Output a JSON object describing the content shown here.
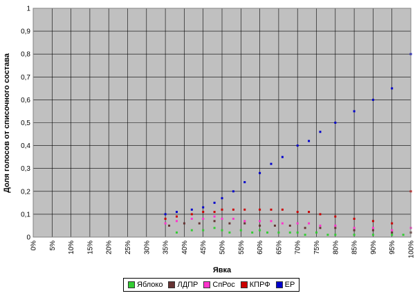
{
  "chart_data": {
    "type": "scatter",
    "xlabel": "Явка",
    "ylabel": "Доля голосов от списочного состава",
    "xlim": [
      0,
      100
    ],
    "ylim": [
      0,
      1
    ],
    "x_ticks": [
      "0%",
      "5%",
      "10%",
      "15%",
      "20%",
      "25%",
      "30%",
      "35%",
      "40%",
      "45%",
      "50%",
      "55%",
      "60%",
      "65%",
      "70%",
      "75%",
      "80%",
      "85%",
      "90%",
      "95%",
      "100%"
    ],
    "y_ticks": [
      "0",
      "0,1",
      "0,2",
      "0,3",
      "0,4",
      "0,5",
      "0,6",
      "0,7",
      "0,8",
      "0,9",
      "1"
    ],
    "grid": true,
    "legend_position": "bottom",
    "series": [
      {
        "name": "Яблоко",
        "color": "#33cc33",
        "x": [
          38,
          42,
          45,
          48,
          50,
          52,
          55,
          58,
          60,
          62,
          65,
          68,
          70,
          72,
          75,
          78,
          80,
          85,
          90,
          95,
          98,
          100
        ],
        "y": [
          0.02,
          0.03,
          0.03,
          0.04,
          0.03,
          0.02,
          0.03,
          0.02,
          0.03,
          0.02,
          0.02,
          0.02,
          0.02,
          0.01,
          0.02,
          0.01,
          0.01,
          0.01,
          0.01,
          0.01,
          0.01,
          0.02
        ]
      },
      {
        "name": "ЛДПР",
        "color": "#663333",
        "x": [
          36,
          40,
          44,
          48,
          52,
          56,
          60,
          64,
          68,
          72,
          76,
          80,
          85,
          90,
          95,
          100
        ],
        "y": [
          0.05,
          0.06,
          0.06,
          0.07,
          0.06,
          0.06,
          0.05,
          0.05,
          0.05,
          0.04,
          0.04,
          0.04,
          0.03,
          0.03,
          0.02,
          0.02
        ]
      },
      {
        "name": "СпРос",
        "color": "#ff33cc",
        "x": [
          35,
          38,
          42,
          45,
          48,
          50,
          53,
          56,
          60,
          63,
          66,
          70,
          73,
          76,
          80,
          85,
          90,
          95,
          100
        ],
        "y": [
          0.06,
          0.07,
          0.08,
          0.08,
          0.09,
          0.08,
          0.08,
          0.07,
          0.07,
          0.07,
          0.06,
          0.06,
          0.06,
          0.05,
          0.05,
          0.04,
          0.04,
          0.03,
          0.04
        ]
      },
      {
        "name": "КПРФ",
        "color": "#cc0000",
        "x": [
          35,
          38,
          42,
          45,
          48,
          50,
          53,
          56,
          60,
          63,
          66,
          70,
          73,
          76,
          80,
          85,
          90,
          95,
          100
        ],
        "y": [
          0.08,
          0.09,
          0.1,
          0.11,
          0.11,
          0.12,
          0.12,
          0.12,
          0.12,
          0.12,
          0.12,
          0.11,
          0.11,
          0.1,
          0.09,
          0.08,
          0.07,
          0.06,
          0.2
        ]
      },
      {
        "name": "ЕР",
        "color": "#0000cc",
        "x": [
          35,
          38,
          42,
          45,
          48,
          50,
          53,
          56,
          60,
          63,
          66,
          70,
          73,
          76,
          80,
          85,
          90,
          95,
          100
        ],
        "y": [
          0.1,
          0.11,
          0.12,
          0.13,
          0.15,
          0.17,
          0.2,
          0.24,
          0.28,
          0.32,
          0.35,
          0.4,
          0.42,
          0.46,
          0.5,
          0.55,
          0.6,
          0.65,
          0.8
        ]
      }
    ]
  }
}
